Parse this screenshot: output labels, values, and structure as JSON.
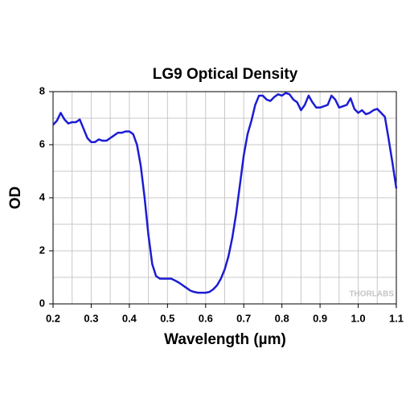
{
  "chart_data": {
    "type": "line",
    "title": "LG9 Optical Density",
    "x_label": "Wavelength (µm)",
    "y_label": "OD",
    "watermark": "THORLABS",
    "xlim": [
      0.2,
      1.1
    ],
    "ylim": [
      0,
      8
    ],
    "xticks": [
      0.2,
      0.3,
      0.4,
      0.5,
      0.6,
      0.7,
      0.8,
      0.9,
      {
        "value": 1,
        "label": "1.0"
      },
      1.1
    ],
    "yticks": [
      0,
      2,
      4,
      6,
      8
    ],
    "x_minor_ticks": [
      0.25,
      0.35,
      0.45,
      0.55,
      0.65,
      0.75,
      0.85,
      0.95,
      1.05
    ],
    "y_minor_ticks": [
      1,
      3,
      5,
      7
    ],
    "grid": true,
    "series": [
      {
        "color": "#1c1cd4",
        "x": [
          0.2,
          0.21,
          0.22,
          0.23,
          0.24,
          0.25,
          0.26,
          0.27,
          0.28,
          0.29,
          0.3,
          0.31,
          0.32,
          0.33,
          0.34,
          0.35,
          0.36,
          0.37,
          0.38,
          0.39,
          0.4,
          0.41,
          0.42,
          0.43,
          0.44,
          0.45,
          0.46,
          0.47,
          0.48,
          0.49,
          0.5,
          0.51,
          0.52,
          0.53,
          0.54,
          0.55,
          0.56,
          0.57,
          0.58,
          0.59,
          0.6,
          0.61,
          0.62,
          0.63,
          0.64,
          0.65,
          0.66,
          0.67,
          0.68,
          0.69,
          0.7,
          0.71,
          0.72,
          0.73,
          0.74,
          0.75,
          0.76,
          0.77,
          0.78,
          0.79,
          0.8,
          0.81,
          0.82,
          0.83,
          0.84,
          0.85,
          0.86,
          0.87,
          0.88,
          0.89,
          0.9,
          0.91,
          0.92,
          0.93,
          0.94,
          0.95,
          0.96,
          0.97,
          0.98,
          0.99,
          1.0,
          1.01,
          1.02,
          1.03,
          1.04,
          1.05,
          1.06,
          1.07,
          1.08,
          1.09,
          1.1
        ],
        "values": [
          6.75,
          6.9,
          7.2,
          6.95,
          6.8,
          6.85,
          6.85,
          6.95,
          6.6,
          6.25,
          6.1,
          6.1,
          6.2,
          6.15,
          6.15,
          6.25,
          6.35,
          6.45,
          6.45,
          6.5,
          6.5,
          6.4,
          6.0,
          5.2,
          4.0,
          2.6,
          1.5,
          1.05,
          0.95,
          0.95,
          0.95,
          0.95,
          0.88,
          0.8,
          0.7,
          0.6,
          0.5,
          0.45,
          0.42,
          0.42,
          0.42,
          0.45,
          0.55,
          0.7,
          0.95,
          1.3,
          1.8,
          2.5,
          3.4,
          4.5,
          5.6,
          6.4,
          6.9,
          7.5,
          7.85,
          7.85,
          7.7,
          7.65,
          7.8,
          7.9,
          7.85,
          7.95,
          7.9,
          7.7,
          7.6,
          7.3,
          7.5,
          7.85,
          7.6,
          7.4,
          7.4,
          7.45,
          7.5,
          7.85,
          7.7,
          7.4,
          7.45,
          7.5,
          7.75,
          7.35,
          7.2,
          7.3,
          7.15,
          7.2,
          7.3,
          7.35,
          7.2,
          7.05,
          6.2,
          5.3,
          4.35
        ]
      }
    ]
  }
}
